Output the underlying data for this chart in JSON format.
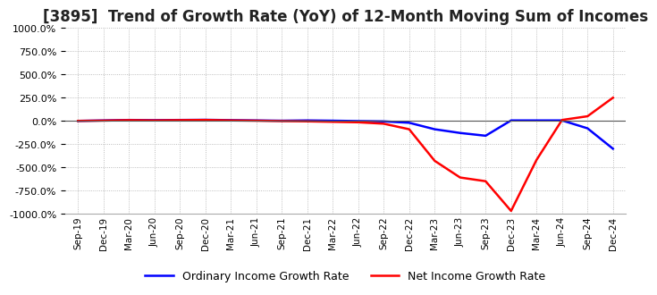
{
  "title": "[3895]  Trend of Growth Rate (YoY) of 12-Month Moving Sum of Incomes",
  "title_fontsize": 12,
  "background_color": "#ffffff",
  "grid_color": "#aaaaaa",
  "ylim": [
    -1000,
    1000
  ],
  "yticks": [
    -1000,
    -750,
    -500,
    -250,
    0,
    250,
    500,
    750,
    1000
  ],
  "x_labels": [
    "Sep-19",
    "Dec-19",
    "Mar-20",
    "Jun-20",
    "Sep-20",
    "Dec-20",
    "Mar-21",
    "Jun-21",
    "Sep-21",
    "Dec-21",
    "Mar-22",
    "Jun-22",
    "Sep-22",
    "Dec-22",
    "Mar-23",
    "Jun-23",
    "Sep-23",
    "Dec-23",
    "Mar-24",
    "Jun-24",
    "Sep-24",
    "Dec-24"
  ],
  "ordinary_income": [
    0,
    5,
    10,
    8,
    10,
    12,
    8,
    5,
    2,
    5,
    2,
    -2,
    -5,
    -20,
    -90,
    -130,
    -160,
    5,
    5,
    5,
    -80,
    -300
  ],
  "net_income": [
    0,
    3,
    8,
    5,
    8,
    10,
    5,
    2,
    -2,
    -5,
    -10,
    -15,
    -30,
    -90,
    -430,
    -610,
    -650,
    -970,
    -420,
    10,
    50,
    250
  ],
  "ordinary_color": "#0000ff",
  "net_color": "#ff0000",
  "legend_ordinary": "Ordinary Income Growth Rate",
  "legend_net": "Net Income Growth Rate",
  "line_width": 1.8
}
